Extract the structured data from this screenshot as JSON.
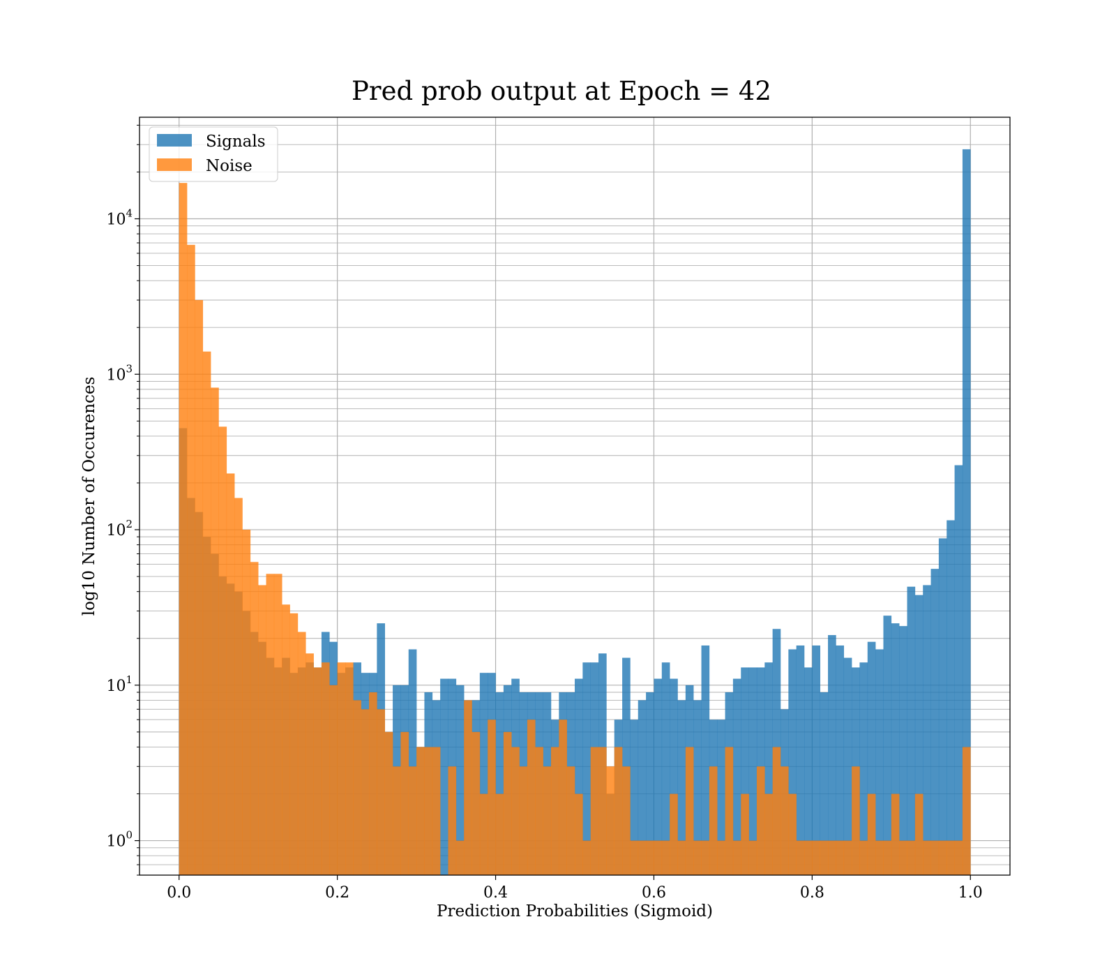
{
  "chart_data": {
    "type": "bar",
    "title": "Pred prob output at Epoch = 42",
    "xlabel": "Prediction Probabilities (Sigmoid)",
    "ylabel": "log10 Number of Occurences",
    "x_scale": "linear",
    "y_scale": "log",
    "xlim": [
      -0.05,
      1.05
    ],
    "ylim": [
      0.6,
      45000
    ],
    "x_ticks": [
      0.0,
      0.2,
      0.4,
      0.6,
      0.8,
      1.0
    ],
    "x_tick_labels": [
      "0.0",
      "0.2",
      "0.4",
      "0.6",
      "0.8",
      "1.0"
    ],
    "y_ticks": [
      1,
      10,
      100,
      1000,
      10000
    ],
    "y_tick_labels": [
      {
        "base": "10",
        "exp": "0"
      },
      {
        "base": "10",
        "exp": "1"
      },
      {
        "base": "10",
        "exp": "2"
      },
      {
        "base": "10",
        "exp": "3"
      },
      {
        "base": "10",
        "exp": "4"
      }
    ],
    "grid": true,
    "legend_position": "top-left",
    "bins": {
      "start": 0.0,
      "end": 1.0,
      "count": 100
    },
    "series": [
      {
        "name": "Signals",
        "color": "#1f77b4",
        "opacity": 0.8,
        "values": [
          450,
          160,
          130,
          90,
          70,
          50,
          45,
          40,
          30,
          22,
          19,
          15,
          13,
          15,
          12,
          13,
          14,
          13,
          22,
          19,
          12,
          13,
          14,
          12,
          12,
          25,
          5,
          10,
          10,
          17,
          4,
          9,
          8,
          11,
          11,
          10,
          8,
          8,
          12,
          12,
          9,
          10,
          11,
          9,
          9,
          9,
          9,
          6,
          9,
          9,
          11,
          14,
          14,
          16,
          2,
          6,
          15,
          6,
          8,
          9,
          11,
          14,
          11,
          8,
          10,
          8,
          18,
          6,
          6,
          9,
          11,
          13,
          13,
          13,
          14,
          23,
          7,
          17,
          18,
          13,
          18,
          9,
          21,
          18,
          15,
          13,
          14,
          19,
          17,
          28,
          25,
          24,
          43,
          38,
          44,
          56,
          88,
          115,
          260,
          28000
        ]
      },
      {
        "name": "Noise",
        "color": "#ff7f0e",
        "opacity": 0.8,
        "values": [
          17000,
          6800,
          3000,
          1400,
          820,
          460,
          230,
          160,
          100,
          62,
          44,
          52,
          52,
          33,
          29,
          22,
          16,
          13,
          14,
          10,
          14,
          14,
          8,
          7,
          9,
          7,
          5,
          3,
          5,
          3,
          4,
          4,
          4,
          0,
          3,
          1,
          8,
          5,
          2,
          6,
          2,
          5,
          4,
          3,
          6,
          4,
          3,
          4,
          6,
          3,
          2,
          1,
          4,
          4,
          3,
          4,
          3,
          1,
          1,
          1,
          1,
          1,
          2,
          1,
          4,
          1,
          1,
          3,
          1,
          4,
          1,
          2,
          1,
          3,
          2,
          4,
          3,
          2,
          1,
          1,
          1,
          1,
          1,
          1,
          1,
          3,
          1,
          2,
          1,
          1,
          2,
          1,
          1,
          2,
          1,
          1,
          1,
          1,
          1,
          4
        ]
      }
    ]
  }
}
